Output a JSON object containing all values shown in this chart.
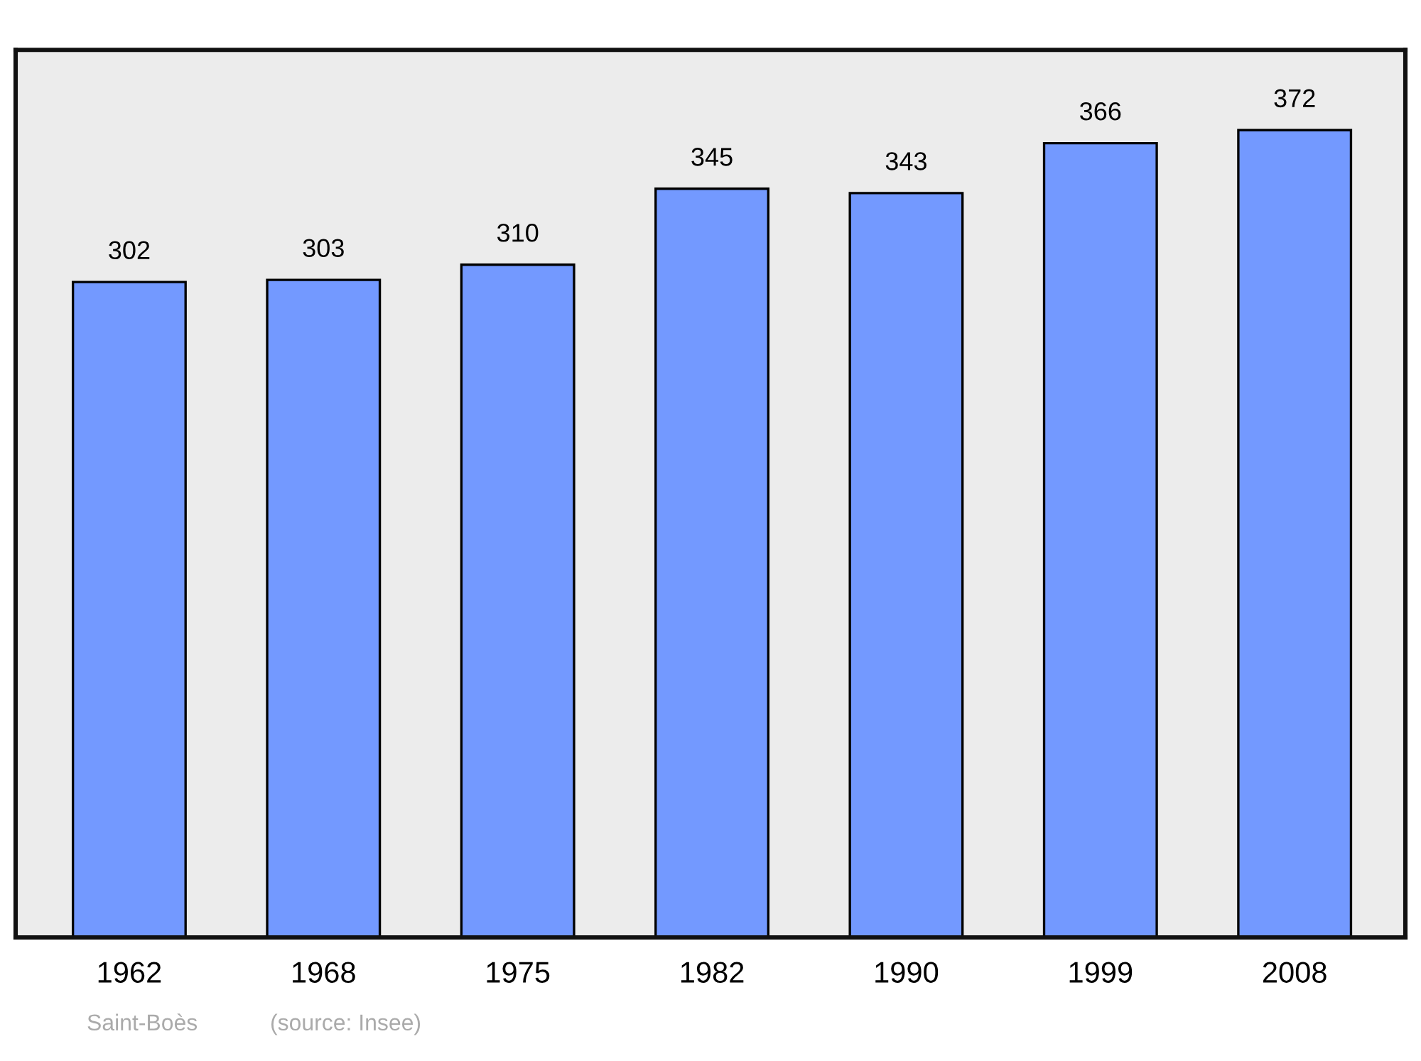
{
  "chart_data": {
    "type": "bar",
    "categories": [
      "1962",
      "1968",
      "1975",
      "1982",
      "1990",
      "1999",
      "2008"
    ],
    "values": [
      302,
      303,
      310,
      345,
      343,
      366,
      372
    ],
    "color": "#7399ff",
    "ylim": [
      0,
      409
    ],
    "data_labels": true,
    "grid": false,
    "tick_labels": "x",
    "annotations": [
      "Saint-Boès",
      "(source: Insee)"
    ]
  }
}
